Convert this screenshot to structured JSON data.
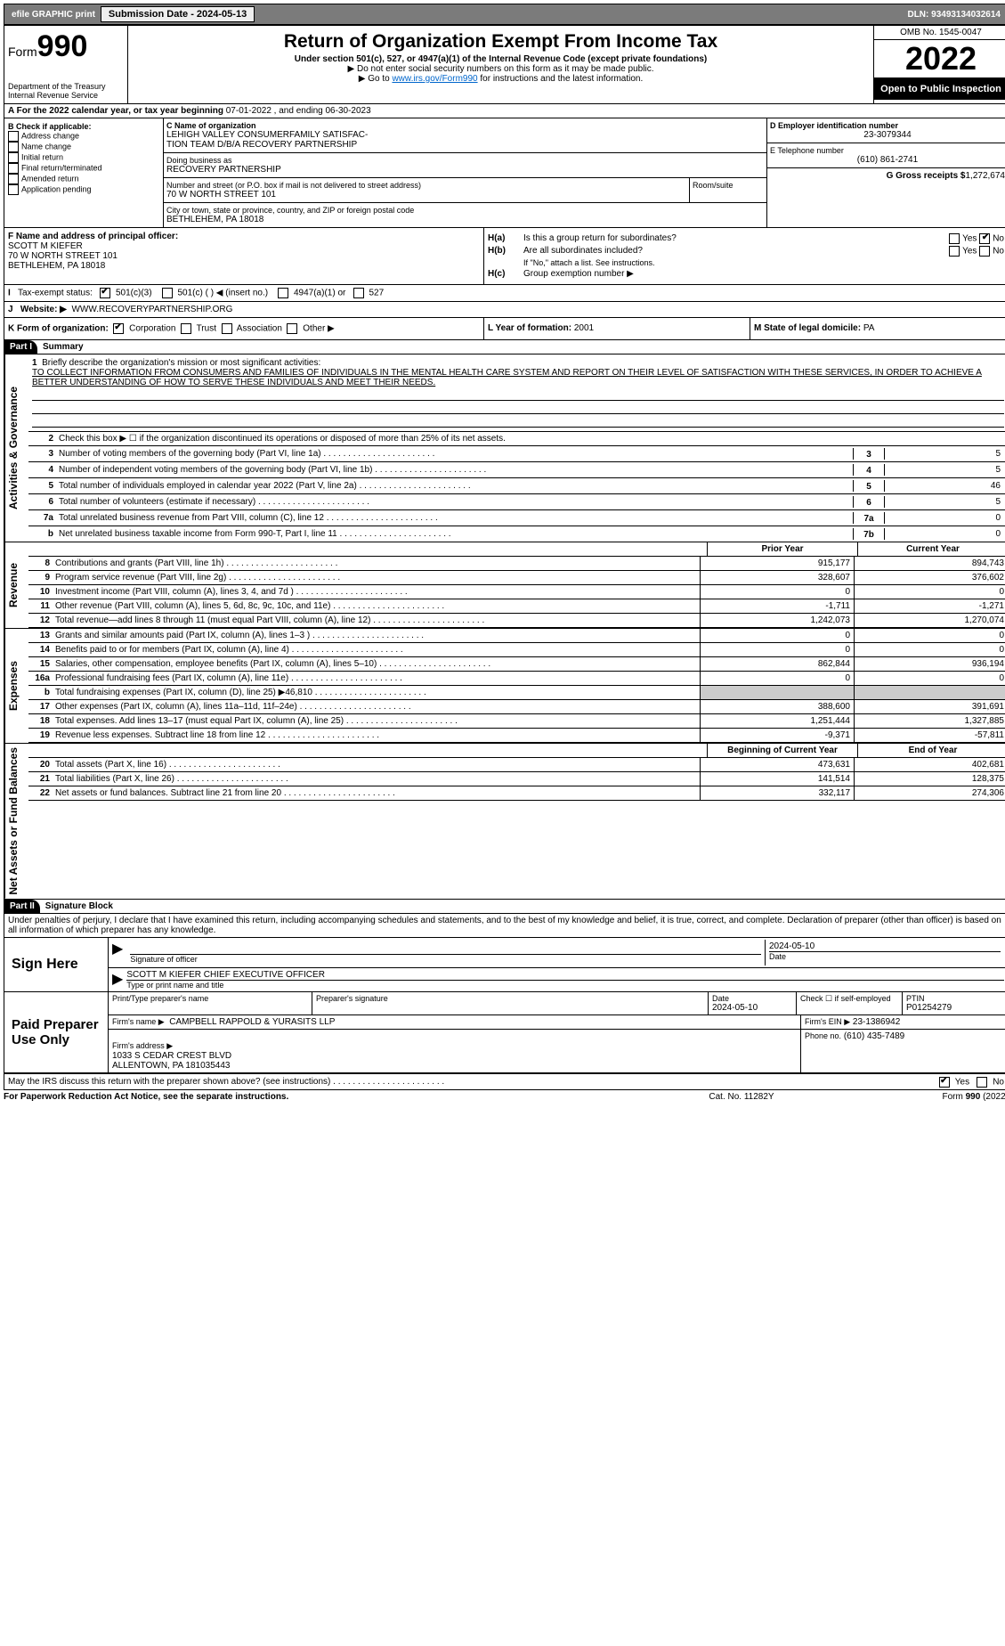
{
  "topbar": {
    "efile": "efile GRAPHIC print",
    "submission_label": "Submission Date - 2024-05-13",
    "dln": "DLN: 93493134032614"
  },
  "header": {
    "form_label": "Form",
    "form_number": "990",
    "dept": "Department of the Treasury",
    "irs": "Internal Revenue Service",
    "title": "Return of Organization Exempt From Income Tax",
    "subtitle": "Under section 501(c), 527, or 4947(a)(1) of the Internal Revenue Code (except private foundations)",
    "note1": "▶ Do not enter social security numbers on this form as it may be made public.",
    "note2_pre": "▶ Go to ",
    "note2_link": "www.irs.gov/Form990",
    "note2_post": " for instructions and the latest information.",
    "omb": "OMB No. 1545-0047",
    "year": "2022",
    "open": "Open to Public Inspection"
  },
  "rowA": {
    "text_pre": "A For the 2022 calendar year, or tax year beginning ",
    "begin": "07-01-2022",
    "mid": " , and ending ",
    "end": "06-30-2023"
  },
  "colB": {
    "label": "B Check if applicable:",
    "items": [
      "Address change",
      "Name change",
      "Initial return",
      "Final return/terminated",
      "Amended return",
      "Application pending"
    ]
  },
  "colC": {
    "name_label": "C Name of organization",
    "name": "LEHIGH VALLEY CONSUMERFAMILY SATISFAC-\nTION TEAM D/B/A RECOVERY PARTNERSHIP",
    "dba_label": "Doing business as",
    "dba": "RECOVERY PARTNERSHIP",
    "street_label": "Number and street (or P.O. box if mail is not delivered to street address)",
    "room_label": "Room/suite",
    "street": "70 W NORTH STREET 101",
    "city_label": "City or town, state or province, country, and ZIP or foreign postal code",
    "city": "BETHLEHEM, PA  18018"
  },
  "colD": {
    "label": "D Employer identification number",
    "value": "23-3079344"
  },
  "colE": {
    "label": "E Telephone number",
    "value": "(610) 861-2741"
  },
  "colG": {
    "label": "G Gross receipts $",
    "value": "1,272,674"
  },
  "colF": {
    "label": "F Name and address of principal officer:",
    "name": "SCOTT M KIEFER",
    "addr1": "70 W NORTH STREET 101",
    "addr2": "BETHLEHEM, PA  18018"
  },
  "colH": {
    "a_label": "H(a)",
    "a_text": "Is this a group return for subordinates?",
    "a_ans_yes": "Yes",
    "a_ans_no": "No",
    "b_label": "H(b)",
    "b_text": "Are all subordinates included?",
    "b_note": "If \"No,\" attach a list. See instructions.",
    "c_label": "H(c)",
    "c_text": "Group exemption number ▶"
  },
  "rowI": {
    "label": "I",
    "text": "Tax-exempt status:",
    "opts": [
      "501(c)(3)",
      "501(c) (  ) ◀ (insert no.)",
      "4947(a)(1) or",
      "527"
    ]
  },
  "rowJ": {
    "label": "J",
    "text": "Website: ▶",
    "value": "WWW.RECOVERYPARTNERSHIP.ORG"
  },
  "rowK": {
    "label": "K Form of organization:",
    "opts": [
      "Corporation",
      "Trust",
      "Association",
      "Other ▶"
    ]
  },
  "rowL": {
    "label": "L Year of formation:",
    "value": "2001"
  },
  "rowM": {
    "label": "M State of legal domicile:",
    "value": "PA"
  },
  "part1": {
    "hdr": "Part I",
    "title": "Summary",
    "side_ag": "Activities & Governance",
    "side_rev": "Revenue",
    "side_exp": "Expenses",
    "side_net": "Net Assets or Fund Balances",
    "l1_label": "1",
    "l1_text": "Briefly describe the organization's mission or most significant activities:",
    "l1_mission": "TO COLLECT INFORMATION FROM CONSUMERS AND FAMILIES OF INDIVIDUALS IN THE MENTAL HEALTH CARE SYSTEM AND REPORT ON THEIR LEVEL OF SATISFACTION WITH THESE SERVICES, IN ORDER TO ACHIEVE A BETTER UNDERSTANDING OF HOW TO SERVE THESE INDIVIDUALS AND MEET THEIR NEEDS.",
    "l2_text": "Check this box ▶ ☐ if the organization discontinued its operations or disposed of more than 25% of its net assets.",
    "lines_ag": [
      {
        "n": "3",
        "t": "Number of voting members of the governing body (Part VI, line 1a)",
        "box": "3",
        "v": "5"
      },
      {
        "n": "4",
        "t": "Number of independent voting members of the governing body (Part VI, line 1b)",
        "box": "4",
        "v": "5"
      },
      {
        "n": "5",
        "t": "Total number of individuals employed in calendar year 2022 (Part V, line 2a)",
        "box": "5",
        "v": "46"
      },
      {
        "n": "6",
        "t": "Total number of volunteers (estimate if necessary)",
        "box": "6",
        "v": "5"
      },
      {
        "n": "7a",
        "t": "Total unrelated business revenue from Part VIII, column (C), line 12",
        "box": "7a",
        "v": "0"
      },
      {
        "n": "b",
        "t": "Net unrelated business taxable income from Form 990-T, Part I, line 11",
        "box": "7b",
        "v": "0"
      }
    ],
    "col_prior": "Prior Year",
    "col_current": "Current Year",
    "rev_lines": [
      {
        "n": "8",
        "t": "Contributions and grants (Part VIII, line 1h)",
        "p": "915,177",
        "c": "894,743"
      },
      {
        "n": "9",
        "t": "Program service revenue (Part VIII, line 2g)",
        "p": "328,607",
        "c": "376,602"
      },
      {
        "n": "10",
        "t": "Investment income (Part VIII, column (A), lines 3, 4, and 7d )",
        "p": "0",
        "c": "0"
      },
      {
        "n": "11",
        "t": "Other revenue (Part VIII, column (A), lines 5, 6d, 8c, 9c, 10c, and 11e)",
        "p": "-1,711",
        "c": "-1,271"
      },
      {
        "n": "12",
        "t": "Total revenue—add lines 8 through 11 (must equal Part VIII, column (A), line 12)",
        "p": "1,242,073",
        "c": "1,270,074"
      }
    ],
    "exp_lines": [
      {
        "n": "13",
        "t": "Grants and similar amounts paid (Part IX, column (A), lines 1–3 )",
        "p": "0",
        "c": "0"
      },
      {
        "n": "14",
        "t": "Benefits paid to or for members (Part IX, column (A), line 4)",
        "p": "0",
        "c": "0"
      },
      {
        "n": "15",
        "t": "Salaries, other compensation, employee benefits (Part IX, column (A), lines 5–10)",
        "p": "862,844",
        "c": "936,194"
      },
      {
        "n": "16a",
        "t": "Professional fundraising fees (Part IX, column (A), line 11e)",
        "p": "0",
        "c": "0"
      },
      {
        "n": "b",
        "t": "Total fundraising expenses (Part IX, column (D), line 25) ▶46,810",
        "p": "",
        "c": "",
        "grey": true
      },
      {
        "n": "17",
        "t": "Other expenses (Part IX, column (A), lines 11a–11d, 11f–24e)",
        "p": "388,600",
        "c": "391,691"
      },
      {
        "n": "18",
        "t": "Total expenses. Add lines 13–17 (must equal Part IX, column (A), line 25)",
        "p": "1,251,444",
        "c": "1,327,885"
      },
      {
        "n": "19",
        "t": "Revenue less expenses. Subtract line 18 from line 12",
        "p": "-9,371",
        "c": "-57,811"
      }
    ],
    "col_begin": "Beginning of Current Year",
    "col_end": "End of Year",
    "net_lines": [
      {
        "n": "20",
        "t": "Total assets (Part X, line 16)",
        "p": "473,631",
        "c": "402,681"
      },
      {
        "n": "21",
        "t": "Total liabilities (Part X, line 26)",
        "p": "141,514",
        "c": "128,375"
      },
      {
        "n": "22",
        "t": "Net assets or fund balances. Subtract line 21 from line 20",
        "p": "332,117",
        "c": "274,306"
      }
    ]
  },
  "part2": {
    "hdr": "Part II",
    "title": "Signature Block",
    "decl": "Under penalties of perjury, I declare that I have examined this return, including accompanying schedules and statements, and to the best of my knowledge and belief, it is true, correct, and complete. Declaration of preparer (other than officer) is based on all information of which preparer has any knowledge.",
    "sign_here": "Sign Here",
    "sig_officer": "Signature of officer",
    "sig_date_label": "Date",
    "sig_date": "2024-05-10",
    "sig_name": "SCOTT M KIEFER CHIEF EXECUTIVE OFFICER",
    "sig_name_label": "Type or print name and title",
    "paid": "Paid Preparer Use Only",
    "prep_name_label": "Print/Type preparer's name",
    "prep_sig_label": "Preparer's signature",
    "prep_date_label": "Date",
    "prep_date": "2024-05-10",
    "prep_self": "Check ☐ if self-employed",
    "ptin_label": "PTIN",
    "ptin": "P01254279",
    "firm_name_label": "Firm's name   ▶",
    "firm_name": "CAMPBELL RAPPOLD & YURASITS LLP",
    "firm_ein_label": "Firm's EIN ▶",
    "firm_ein": "23-1386942",
    "firm_addr_label": "Firm's address ▶",
    "firm_addr": "1033 S CEDAR CREST BLVD\nALLENTOWN, PA  181035443",
    "firm_phone_label": "Phone no.",
    "firm_phone": "(610) 435-7489",
    "may_irs": "May the IRS discuss this return with the preparer shown above? (see instructions)",
    "yes": "Yes",
    "no": "No"
  },
  "footer": {
    "left": "For Paperwork Reduction Act Notice, see the separate instructions.",
    "mid": "Cat. No. 11282Y",
    "right": "Form 990 (2022)"
  }
}
